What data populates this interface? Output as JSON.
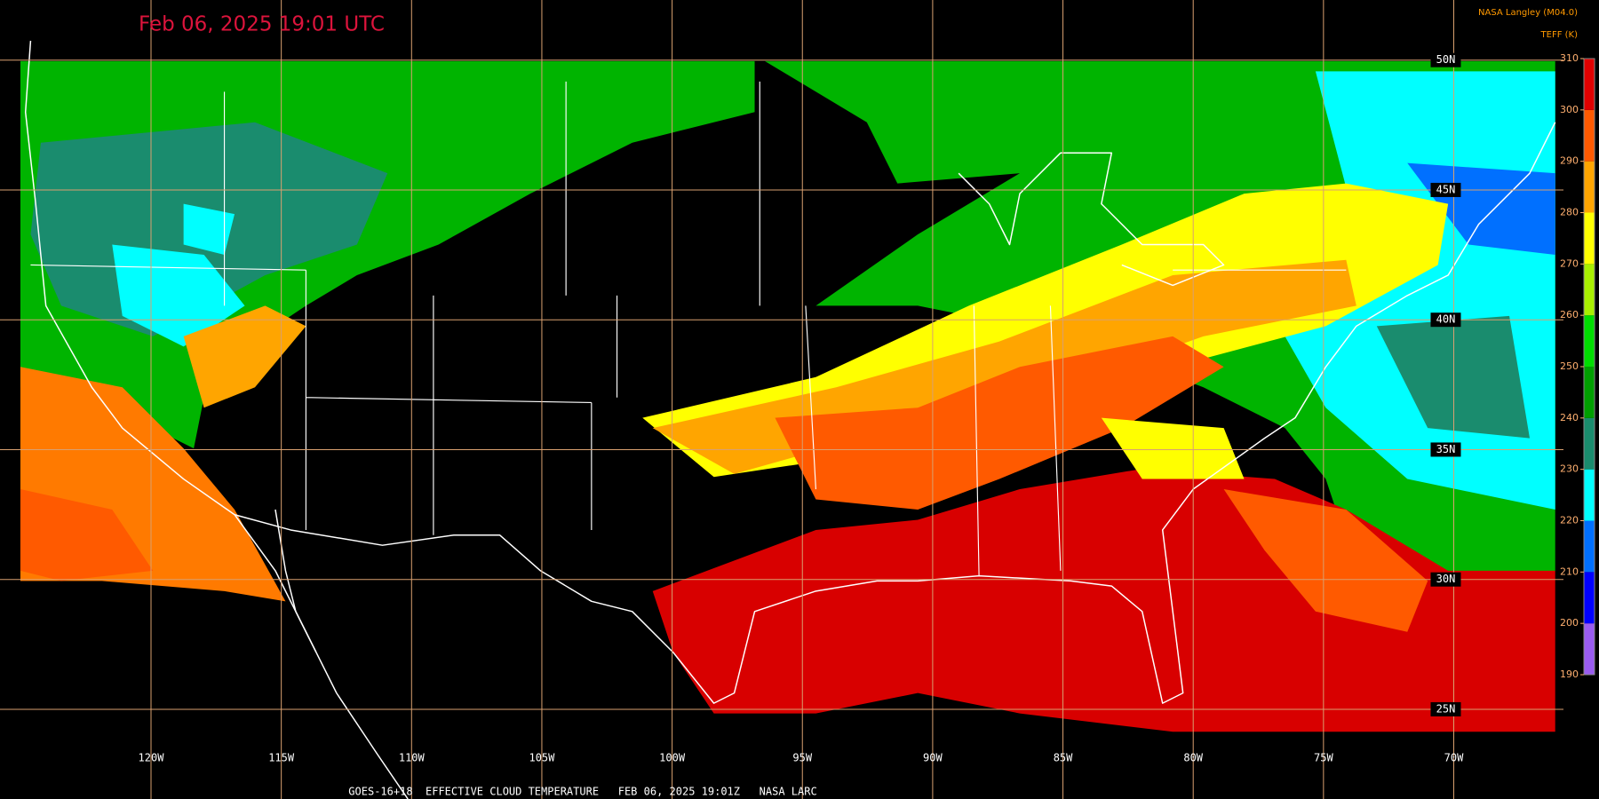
{
  "header": {
    "title": "Feb 06, 2025 19:01 UTC",
    "credit": "NASA Langley (M04.0)"
  },
  "colorbar": {
    "label": "TEFF (K)",
    "lim": [
      190,
      310
    ],
    "ticks": [
      190,
      200,
      210,
      220,
      230,
      240,
      250,
      260,
      270,
      280,
      290,
      300,
      310
    ],
    "colors": [
      "#9a5cf0",
      "#0000ff",
      "#0070ff",
      "#00ffff",
      "#1a8c6e",
      "#00a000",
      "#00dd00",
      "#a8f000",
      "#ffff00",
      "#ffa500",
      "#ff5a00",
      "#e00000"
    ]
  },
  "grid": {
    "lon_ticks": [
      {
        "value": -120,
        "label": "120W"
      },
      {
        "value": -115,
        "label": "115W"
      },
      {
        "value": -110,
        "label": "110W"
      },
      {
        "value": -105,
        "label": "105W"
      },
      {
        "value": -100,
        "label": "100W"
      },
      {
        "value": -95,
        "label": "95W"
      },
      {
        "value": -90,
        "label": "90W"
      },
      {
        "value": -85,
        "label": "85W"
      },
      {
        "value": -80,
        "label": "80W"
      },
      {
        "value": -75,
        "label": "75W"
      },
      {
        "value": -70,
        "label": "70W"
      }
    ],
    "lat_ticks": [
      {
        "value": 50,
        "label": "50N"
      },
      {
        "value": 45,
        "label": "45N"
      },
      {
        "value": 40,
        "label": "40N"
      },
      {
        "value": 35,
        "label": "35N"
      },
      {
        "value": 30,
        "label": "30N"
      },
      {
        "value": 25,
        "label": "25N"
      }
    ]
  },
  "footer": "GOES-16+18  EFFECTIVE CLOUD TEMPERATURE   FEB 06, 2025 19:01Z   NASA LARC"
}
